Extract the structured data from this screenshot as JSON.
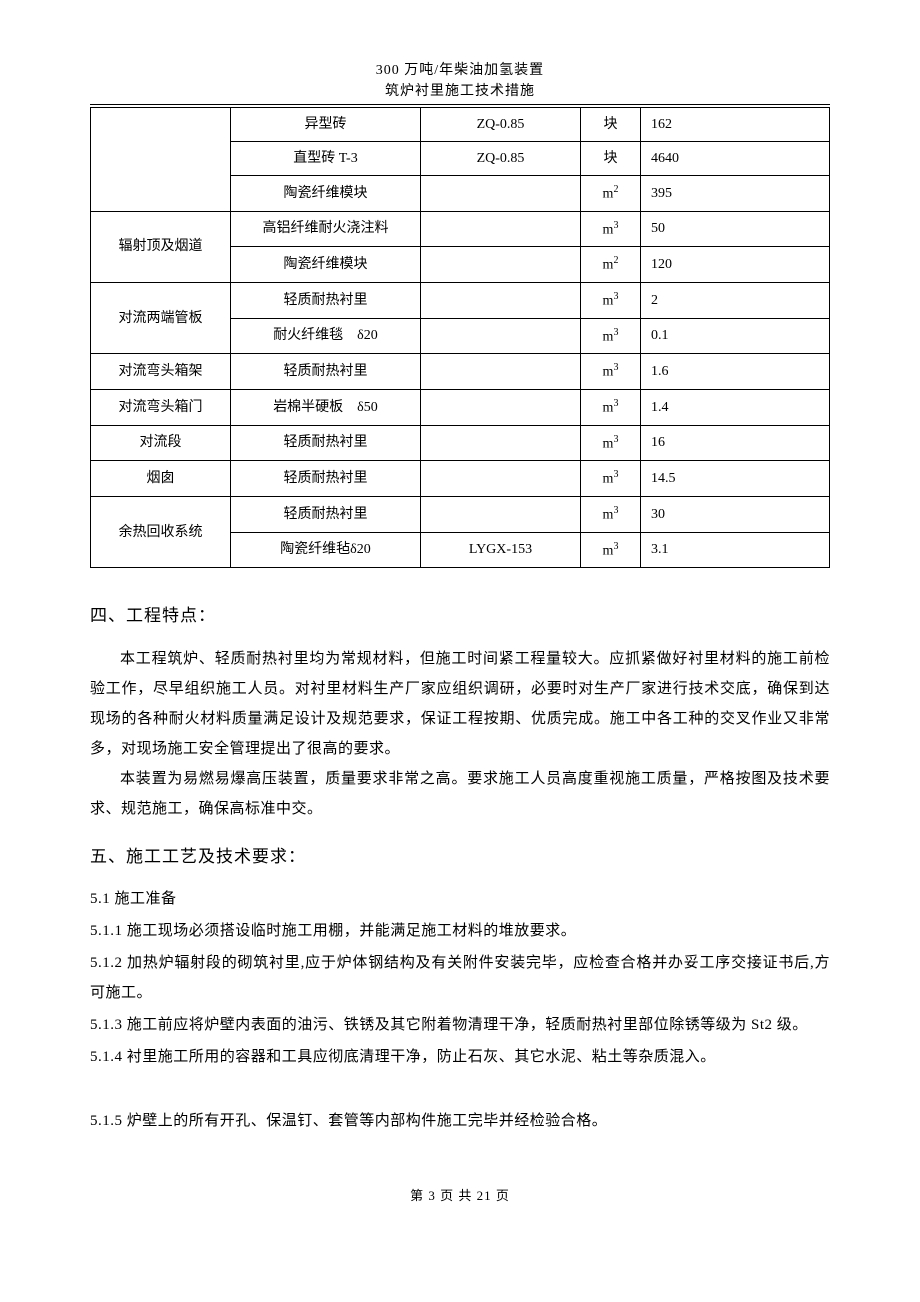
{
  "header": {
    "title": "300 万吨/年柴油加氢装置",
    "subtitle": "筑炉衬里施工技术措施"
  },
  "table": {
    "rows": [
      {
        "col1": "",
        "col2": "异型砖",
        "col3": "ZQ-0.85",
        "col4": "块",
        "col5": "162",
        "rowspan1": 3
      },
      {
        "col2": "直型砖 T-3",
        "col3": "ZQ-0.85",
        "col4": "块",
        "col5": "4640"
      },
      {
        "col2": "陶瓷纤维模块",
        "col3": "",
        "col4": "m²",
        "col5": "395"
      },
      {
        "col1": "辐射顶及烟道",
        "col2": "高铝纤维耐火浇注料",
        "col3": "",
        "col4": "m³",
        "col5": "50",
        "rowspan1": 2
      },
      {
        "col2": "陶瓷纤维模块",
        "col3": "",
        "col4": "m²",
        "col5": "120"
      },
      {
        "col1": "对流两端管板",
        "col2": "轻质耐热衬里",
        "col3": "",
        "col4": "m³",
        "col5": "2",
        "rowspan1": 2
      },
      {
        "col2": "耐火纤维毯　δ20",
        "col3": "",
        "col4": "m³",
        "col5": "0.1"
      },
      {
        "col1": "对流弯头箱架",
        "col2": "轻质耐热衬里",
        "col3": "",
        "col4": "m³",
        "col5": "1.6",
        "rowspan1": 1
      },
      {
        "col1": "对流弯头箱门",
        "col2": "岩棉半硬板　δ50",
        "col3": "",
        "col4": "m³",
        "col5": "1.4",
        "rowspan1": 1
      },
      {
        "col1": "对流段",
        "col2": "轻质耐热衬里",
        "col3": "",
        "col4": "m³",
        "col5": "16",
        "rowspan1": 1
      },
      {
        "col1": "烟囱",
        "col2": "轻质耐热衬里",
        "col3": "",
        "col4": "m³",
        "col5": "14.5",
        "rowspan1": 1
      },
      {
        "col1": "余热回收系统",
        "col2": "轻质耐热衬里",
        "col3": "",
        "col4": "m³",
        "col5": "30",
        "rowspan1": 2
      },
      {
        "col2": "陶瓷纤维毡δ20",
        "col3": "LYGX-153",
        "col4": "m³",
        "col5": "3.1"
      }
    ]
  },
  "section4": {
    "title": "四、工程特点：",
    "paragraphs": [
      "本工程筑炉、轻质耐热衬里均为常规材料，但施工时间紧工程量较大。应抓紧做好衬里材料的施工前检验工作，尽早组织施工人员。对衬里材料生产厂家应组织调研，必要时对生产厂家进行技术交底，确保到达现场的各种耐火材料质量满足设计及规范要求，保证工程按期、优质完成。施工中各工种的交叉作业又非常多，对现场施工安全管理提出了很高的要求。",
      "本装置为易燃易爆高压装置，质量要求非常之高。要求施工人员高度重视施工质量，严格按图及技术要求、规范施工，确保高标准中交。"
    ]
  },
  "section5": {
    "title": "五、施工工艺及技术要求：",
    "subtitle": "5.1 施工准备",
    "items": [
      "5.1.1 施工现场必须搭设临时施工用棚，并能满足施工材料的堆放要求。",
      "5.1.2 加热炉辐射段的砌筑衬里,应于炉体钢结构及有关附件安装完毕，应检查合格并办妥工序交接证书后,方可施工。",
      "5.1.3 施工前应将炉壁内表面的油污、铁锈及其它附着物清理干净，轻质耐热衬里部位除锈等级为 St2 级。",
      "5.1.4 衬里施工所用的容器和工具应彻底清理干净，防止石灰、其它水泥、粘土等杂质混入。",
      "",
      "5.1.5 炉壁上的所有开孔、保温钉、套管等内部构件施工完毕并经检验合格。"
    ]
  },
  "footer": {
    "text": "第 3 页 共 21 页"
  }
}
